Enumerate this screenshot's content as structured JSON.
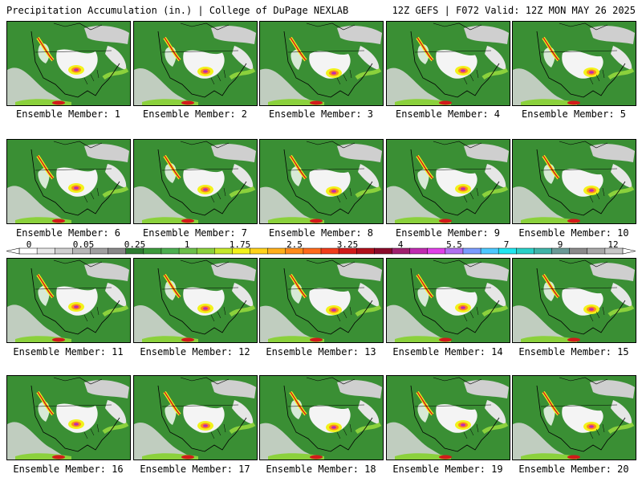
{
  "header": {
    "left": "Precipitation Accumulation (in.) | College of DuPage NEXLAB",
    "right": "12Z GEFS | F072 Valid: 12Z MON MAY 26 2025"
  },
  "colorbar": {
    "labels": [
      "0",
      "0.05",
      "0.25",
      "1",
      "1.75",
      "2.5",
      "3.25",
      "4",
      "5.5",
      "7",
      "9",
      "12"
    ],
    "colors": [
      "#ffffff",
      "#e8e8e8",
      "#d0d0d0",
      "#b8b8b8",
      "#a0a0a0",
      "#888888",
      "#2e7d32",
      "#3c9a3c",
      "#4caf50",
      "#6cc04a",
      "#8bd13c",
      "#c6e82a",
      "#f2f21a",
      "#ffd21a",
      "#ffb01a",
      "#ff8c1a",
      "#ff6a1a",
      "#f03c1a",
      "#d21a1a",
      "#b0101a",
      "#8a0a2a",
      "#a0206e",
      "#c02ab0",
      "#e040e8",
      "#b070f0",
      "#7a9cff",
      "#4cc8ff",
      "#20e6f0",
      "#2ad0c8",
      "#40b4a8",
      "#6a9a96",
      "#8a8a8a",
      "#a8a8a8",
      "#c8c8c8"
    ],
    "arrow_color": "#ffffff"
  },
  "members": [
    {
      "caption": "Ensemble Member: 1"
    },
    {
      "caption": "Ensemble Member: 2"
    },
    {
      "caption": "Ensemble Member: 3"
    },
    {
      "caption": "Ensemble Member: 4"
    },
    {
      "caption": "Ensemble Member: 5"
    },
    {
      "caption": "Ensemble Member: 6"
    },
    {
      "caption": "Ensemble Member: 7"
    },
    {
      "caption": "Ensemble Member: 8"
    },
    {
      "caption": "Ensemble Member: 9"
    },
    {
      "caption": "Ensemble Member: 10"
    },
    {
      "caption": "Ensemble Member: 11"
    },
    {
      "caption": "Ensemble Member: 12"
    },
    {
      "caption": "Ensemble Member: 13"
    },
    {
      "caption": "Ensemble Member: 14"
    },
    {
      "caption": "Ensemble Member: 15"
    },
    {
      "caption": "Ensemble Member: 16"
    },
    {
      "caption": "Ensemble Member: 17"
    },
    {
      "caption": "Ensemble Member: 18"
    },
    {
      "caption": "Ensemble Member: 19"
    },
    {
      "caption": "Ensemble Member: 20"
    }
  ]
}
